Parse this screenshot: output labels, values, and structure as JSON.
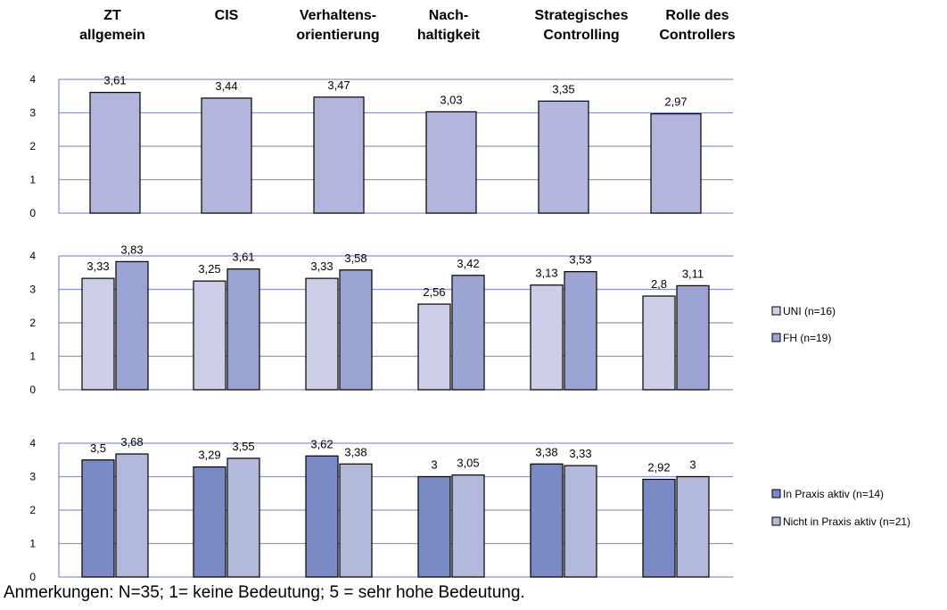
{
  "categories": [
    [
      "ZT",
      "allgemein"
    ],
    [
      "CIS"
    ],
    [
      "Verhaltens-",
      "orientierung"
    ],
    [
      "Nach-",
      "haltigkeit"
    ],
    [
      "Strategisches",
      "Controlling"
    ],
    [
      "Rolle des",
      "Controllers"
    ]
  ],
  "note": "Anmerkungen: N=35; 1= keine Bedeutung; 5 = sehr hohe Bedeutung.",
  "colors": {
    "gridline": "#8e93c8",
    "bar_outline": "#000000",
    "panel1": "#b2b6dc",
    "uni": "#cdcfe8",
    "fh": "#9ba4d3",
    "praxis": "#7a8ac4",
    "nicht_praxis": "#b3b8dd"
  },
  "chart_data": [
    {
      "type": "bar",
      "ylim": [
        0,
        4
      ],
      "yticks": [
        0,
        1,
        2,
        3,
        4
      ],
      "grid": true,
      "legend": "none",
      "series": [
        {
          "values": [
            3.61,
            3.44,
            3.47,
            3.03,
            3.35,
            2.97
          ],
          "labels": [
            "3,61",
            "3,44",
            "3,47",
            "3,03",
            "3,35",
            "2,97"
          ],
          "color": "#b2b6dc"
        }
      ]
    },
    {
      "type": "bar",
      "ylim": [
        0,
        4
      ],
      "yticks": [
        0,
        1,
        2,
        3,
        4
      ],
      "grid": true,
      "legend": "right",
      "series": [
        {
          "name": "UNI (n=16)",
          "values": [
            3.33,
            3.25,
            3.33,
            2.56,
            3.13,
            2.8
          ],
          "labels": [
            "3,33",
            "3,25",
            "3,33",
            "2,56",
            "3,13",
            "2,8"
          ],
          "color": "#cdcfe8"
        },
        {
          "name": "FH (n=19)",
          "values": [
            3.83,
            3.61,
            3.58,
            3.42,
            3.53,
            3.11
          ],
          "labels": [
            "3,83",
            "3,61",
            "3,58",
            "3,42",
            "3,53",
            "3,11"
          ],
          "color": "#9ba4d3"
        }
      ]
    },
    {
      "type": "bar",
      "ylim": [
        0,
        4
      ],
      "yticks": [
        0,
        1,
        2,
        3,
        4
      ],
      "grid": true,
      "legend": "right",
      "series": [
        {
          "name": "In Praxis aktiv (n=14)",
          "values": [
            3.5,
            3.29,
            3.62,
            3.0,
            3.38,
            2.92
          ],
          "labels": [
            "3,5",
            "3,29",
            "3,62",
            "3",
            "3,38",
            "2,92"
          ],
          "color": "#7a8ac4"
        },
        {
          "name": "Nicht in Praxis aktiv (n=21)",
          "values": [
            3.68,
            3.55,
            3.38,
            3.05,
            3.33,
            3.0
          ],
          "labels": [
            "3,68",
            "3,55",
            "3,38",
            "3,05",
            "3,33",
            "3"
          ],
          "color": "#b3b8dd"
        }
      ]
    }
  ]
}
